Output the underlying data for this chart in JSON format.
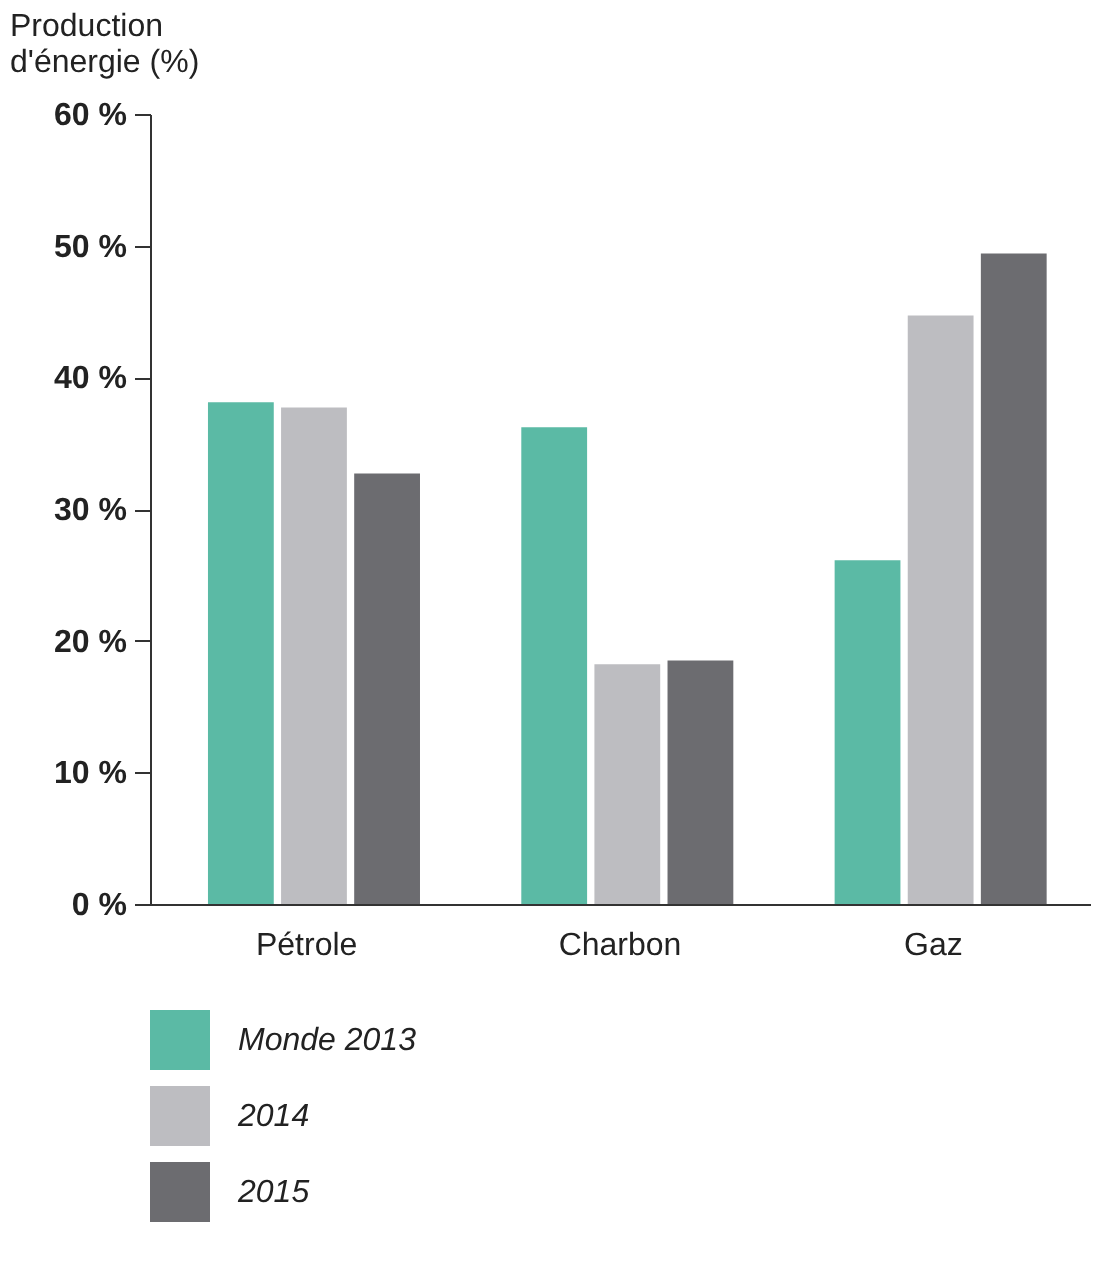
{
  "chart_data": {
    "type": "bar",
    "ylabel": "Production d'énergie (%)",
    "categories": [
      "Pétrole",
      "Charbon",
      "Gaz"
    ],
    "series": [
      {
        "name": "Monde 2013",
        "color": "#5bbaa5",
        "values": [
          38.1,
          36.2,
          26.1
        ]
      },
      {
        "name": "2014",
        "color": "#bdbdc1",
        "values": [
          37.7,
          18.2,
          44.7
        ]
      },
      {
        "name": "2015",
        "color": "#6c6c70",
        "values": [
          32.7,
          18.5,
          49.4
        ]
      }
    ],
    "ylim": [
      0,
      60
    ],
    "yticks": [
      {
        "value": 0,
        "label": "0 %"
      },
      {
        "value": 10,
        "label": "10 %"
      },
      {
        "value": 20,
        "label": "20 %"
      },
      {
        "value": 30,
        "label": "30 %"
      },
      {
        "value": 40,
        "label": "40 %"
      },
      {
        "value": 50,
        "label": "50 %"
      },
      {
        "value": 60,
        "label": "60 %"
      }
    ],
    "grid": false,
    "legend": "bottom left"
  }
}
